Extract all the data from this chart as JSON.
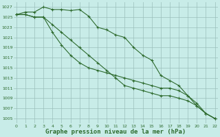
{
  "xlabel": "Graphe pression niveau de la mer (hPa)",
  "x": [
    0,
    1,
    2,
    3,
    4,
    5,
    6,
    7,
    8,
    9,
    10,
    11,
    12,
    13,
    14,
    15,
    16,
    17,
    18,
    19,
    20,
    21,
    22
  ],
  "line1": [
    1025.5,
    1026.0,
    1026.0,
    1027.0,
    1026.5,
    1026.5,
    1026.3,
    1026.5,
    1025.2,
    1023.0,
    1022.5,
    1021.5,
    1021.0,
    1019.0,
    1017.5,
    1016.5,
    1013.5,
    1012.5,
    1011.5,
    1009.5,
    1007.5,
    1006.0,
    1005.0
  ],
  "line2": [
    1025.5,
    1025.5,
    1025.0,
    1025.0,
    1023.5,
    1022.0,
    1020.5,
    1019.0,
    1017.5,
    1016.0,
    1014.5,
    1013.0,
    1011.5,
    1011.0,
    1010.5,
    1010.0,
    1009.5,
    1009.5,
    1009.0,
    1008.5,
    1007.5,
    1006.0,
    1005.0
  ],
  "line3": [
    1025.5,
    1025.5,
    1025.0,
    1025.0,
    1022.0,
    1019.5,
    1017.5,
    1016.0,
    1015.0,
    1014.5,
    1014.0,
    1013.5,
    1013.0,
    1012.5,
    1012.0,
    1011.5,
    1011.0,
    1011.0,
    1010.5,
    1009.5,
    1008.0,
    1006.0,
    1005.0
  ],
  "line_color": "#2d6a2d",
  "bg_color": "#c8ece8",
  "grid_color": "#9bbfbb",
  "text_color": "#2d6a2d",
  "ylim_min": 1004,
  "ylim_max": 1028,
  "ytick_min": 1005,
  "ytick_max": 1027,
  "ytick_step": 2,
  "marker": "+",
  "marker_size": 3,
  "linewidth": 0.8
}
